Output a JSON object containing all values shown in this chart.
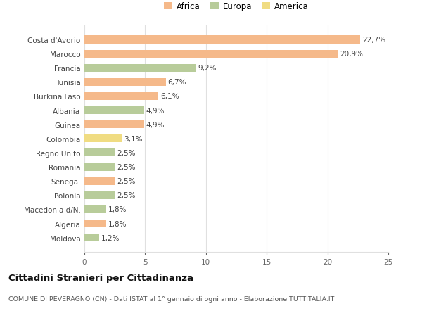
{
  "countries": [
    "Moldova",
    "Algeria",
    "Macedonia d/N.",
    "Polonia",
    "Senegal",
    "Romania",
    "Regno Unito",
    "Colombia",
    "Guinea",
    "Albania",
    "Burkina Faso",
    "Tunisia",
    "Francia",
    "Marocco",
    "Costa d'Avorio"
  ],
  "values": [
    1.2,
    1.8,
    1.8,
    2.5,
    2.5,
    2.5,
    2.5,
    3.1,
    4.9,
    4.9,
    6.1,
    6.7,
    9.2,
    20.9,
    22.7
  ],
  "continents": [
    "Europa",
    "Africa",
    "Europa",
    "Europa",
    "Africa",
    "Europa",
    "Europa",
    "America",
    "Africa",
    "Europa",
    "Africa",
    "Africa",
    "Europa",
    "Africa",
    "Africa"
  ],
  "colors": {
    "Africa": "#F5B98A",
    "Europa": "#B8CC9A",
    "America": "#F0DC82"
  },
  "legend_labels": [
    "Africa",
    "Europa",
    "America"
  ],
  "legend_colors": [
    "#F5B98A",
    "#B8CC9A",
    "#F0DC82"
  ],
  "xlim": [
    0,
    25
  ],
  "xticks": [
    0,
    5,
    10,
    15,
    20,
    25
  ],
  "title": "Cittadini Stranieri per Cittadinanza",
  "subtitle": "COMUNE DI PEVERAGNO (CN) - Dati ISTAT al 1° gennaio di ogni anno - Elaborazione TUTTITALIA.IT",
  "background_color": "#ffffff",
  "grid_color": "#e0e0e0",
  "bar_height": 0.55
}
